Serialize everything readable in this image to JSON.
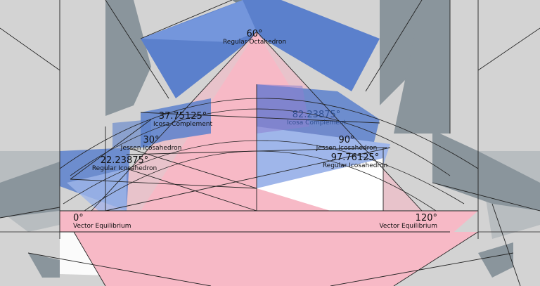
{
  "colors": {
    "background": "#d3d3d3",
    "shadow": "#8a959c",
    "pink": "#f7b9c6",
    "blue": "#5b80cc",
    "light_blue": "#9fb6ea",
    "white": "#ffffff",
    "line": "#222222"
  },
  "labels": {
    "octahedron": {
      "angle": "60°",
      "name": "Regular Octahedron"
    },
    "icosa_comp_l": {
      "angle": "37.75125°",
      "name": "Icosa Complement"
    },
    "icosa_comp_r": {
      "angle": "82.23875°",
      "name": "Icosa Complement"
    },
    "jessen_l": {
      "angle": "30°",
      "name": "Jessen Icosahedron"
    },
    "jessen_r": {
      "angle": "90°",
      "name": "Jessen Icosahedron"
    },
    "icosa_l": {
      "angle": "22.23875°",
      "name": "Regular Icosahedron"
    },
    "icosa_r": {
      "angle": "97.76125°",
      "name": "Regular Icosahedron"
    },
    "ve_l": {
      "angle": "0°",
      "name": "Vector Equilibrium"
    },
    "ve_r": {
      "angle": "120°",
      "name": "Vector Equilibrium"
    }
  }
}
